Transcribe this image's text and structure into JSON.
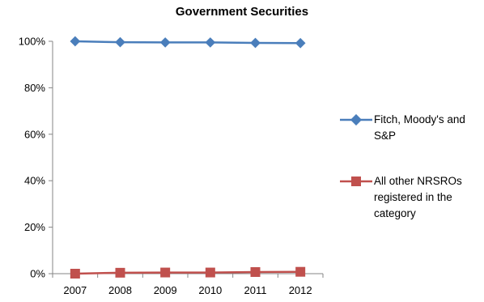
{
  "chart_data": {
    "type": "line",
    "title": "Government Securities",
    "categories": [
      "2007",
      "2008",
      "2009",
      "2010",
      "2011",
      "2012"
    ],
    "yticks": [
      "0%",
      "20%",
      "40%",
      "60%",
      "80%",
      "100%"
    ],
    "ylim": [
      0,
      100
    ],
    "grid": false,
    "legend_position": "right",
    "series": [
      {
        "name": "Fitch, Moody's and S&P",
        "values": [
          100,
          99.6,
          99.5,
          99.5,
          99.3,
          99.2
        ],
        "color": "#4a7ebb",
        "marker": "diamond"
      },
      {
        "name": "All other NRSROs registered in the category",
        "values": [
          0,
          0.4,
          0.5,
          0.5,
          0.7,
          0.8
        ],
        "color": "#c0504d",
        "marker": "square"
      }
    ]
  }
}
